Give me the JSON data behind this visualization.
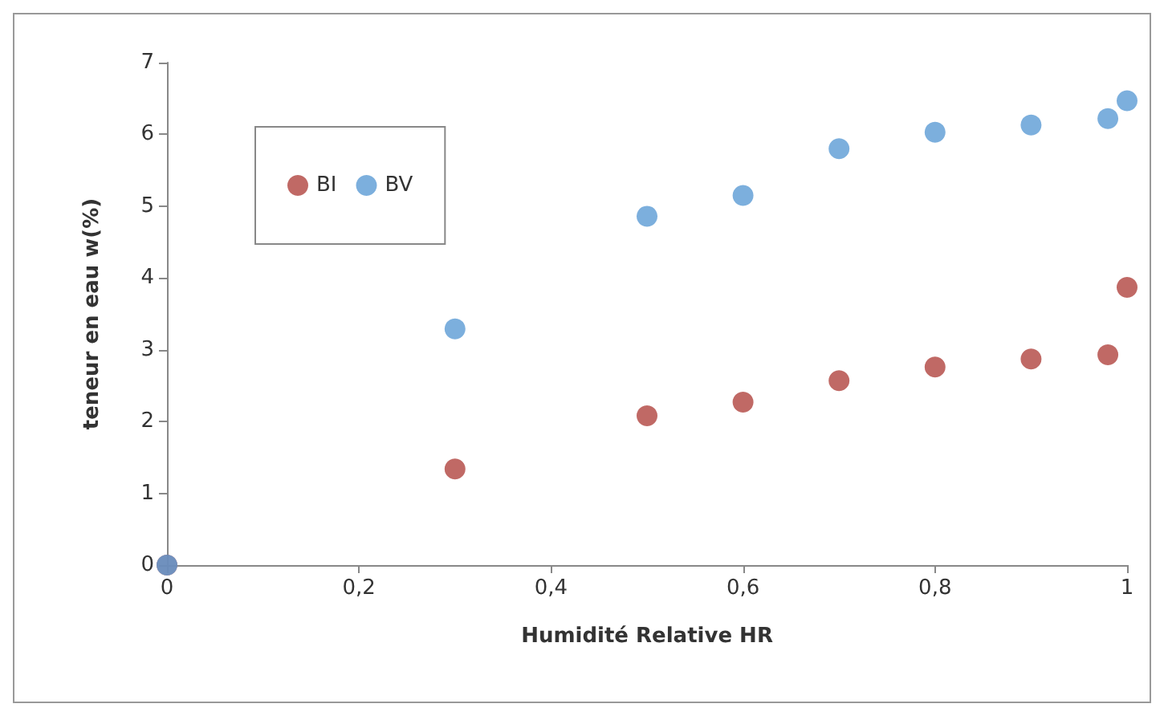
{
  "chart_data": {
    "type": "scatter",
    "xlabel": "Humidité Relative HR",
    "ylabel": "teneur en eau w(%)",
    "xlim": [
      0,
      1
    ],
    "xticks": [
      0,
      {
        "value": 0.2,
        "label": "0,2"
      },
      {
        "value": 0.4,
        "label": "0,4"
      },
      {
        "value": 0.6,
        "label": "0,6"
      },
      {
        "value": 0.8,
        "label": "0,8"
      },
      1
    ],
    "ylim": [
      0,
      7
    ],
    "yticks": [
      0,
      1,
      2,
      3,
      4,
      5,
      6,
      7
    ],
    "x": [
      0,
      0.3,
      0.5,
      0.6,
      0.7,
      0.8,
      0.9,
      0.98,
      1
    ],
    "series": [
      {
        "name": "BI",
        "color": "#b0443f",
        "values": [
          0,
          1.34,
          2.08,
          2.27,
          2.57,
          2.76,
          2.87,
          2.93,
          3.87
        ]
      },
      {
        "name": "BV",
        "color": "#5b9bd5",
        "values": [
          0,
          3.29,
          4.86,
          5.15,
          5.8,
          6.03,
          6.13,
          6.22,
          6.47
        ]
      }
    ],
    "marker": "circle",
    "grid": false,
    "legend": "top left"
  }
}
